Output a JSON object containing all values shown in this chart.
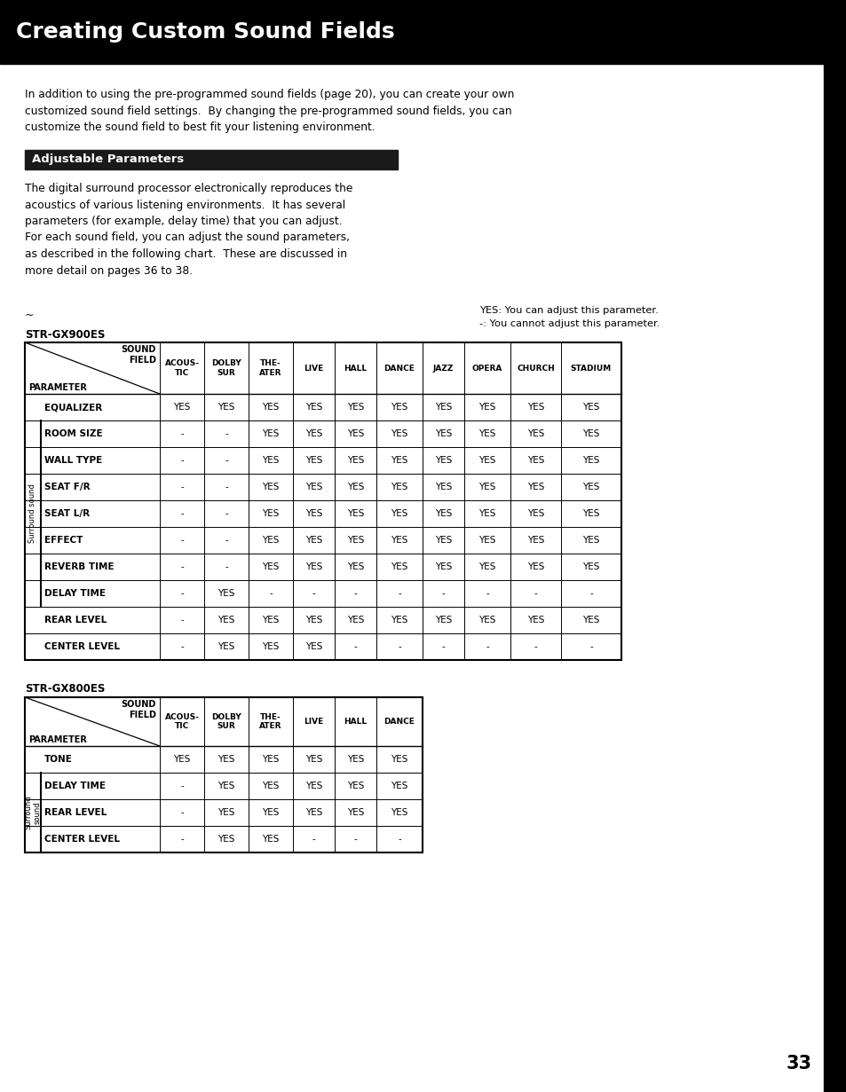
{
  "title": "Creating Custom Sound Fields",
  "title_bg": "#000000",
  "title_color": "#ffffff",
  "title_fontsize": 18,
  "section_header": "Adjustable Parameters",
  "section_bg": "#1a1a1a",
  "section_color": "#ffffff",
  "intro_text": "In addition to using the pre-programmed sound fields (page 20), you can create your own\ncustomized sound field settings.  By changing the pre-programmed sound fields, you can\ncustomize the sound field to best fit your listening environment.",
  "body_text": "The digital surround processor electronically reproduces the\nacoustics of various listening environments.  It has several\nparameters (for example, delay time) that you can adjust.\nFor each sound field, you can adjust the sound parameters,\nas described in the following chart.  These are discussed in\nmore detail on pages 36 to 38.",
  "arrow_text": "→",
  "note_text1": "YES: You can adjust this parameter.",
  "note_text2": "-: You cannot adjust this parameter.",
  "table1_label": "STR-GX900ES",
  "table2_label": "STR-GX800ES",
  "table1_col_headers": [
    "ACOUS-\nTIC",
    "DOLBY\nSUR",
    "THE-\nATER",
    "LIVE",
    "HALL",
    "DANCE",
    "JAZZ",
    "OPERA",
    "CHURCH",
    "STADIUM"
  ],
  "table1_rows": [
    [
      "EQUALIZER",
      "YES",
      "YES",
      "YES",
      "YES",
      "YES",
      "YES",
      "YES",
      "YES",
      "YES",
      "YES"
    ],
    [
      "ROOM SIZE",
      "-",
      "-",
      "YES",
      "YES",
      "YES",
      "YES",
      "YES",
      "YES",
      "YES",
      "YES"
    ],
    [
      "WALL TYPE",
      "-",
      "-",
      "YES",
      "YES",
      "YES",
      "YES",
      "YES",
      "YES",
      "YES",
      "YES"
    ],
    [
      "SEAT F/R",
      "-",
      "-",
      "YES",
      "YES",
      "YES",
      "YES",
      "YES",
      "YES",
      "YES",
      "YES"
    ],
    [
      "SEAT L/R",
      "-",
      "-",
      "YES",
      "YES",
      "YES",
      "YES",
      "YES",
      "YES",
      "YES",
      "YES"
    ],
    [
      "EFFECT",
      "-",
      "-",
      "YES",
      "YES",
      "YES",
      "YES",
      "YES",
      "YES",
      "YES",
      "YES"
    ],
    [
      "REVERB TIME",
      "-",
      "-",
      "YES",
      "YES",
      "YES",
      "YES",
      "YES",
      "YES",
      "YES",
      "YES"
    ],
    [
      "DELAY TIME",
      "-",
      "YES",
      "-",
      "-",
      "-",
      "-",
      "-",
      "-",
      "-",
      "-"
    ],
    [
      "REAR LEVEL",
      "-",
      "YES",
      "YES",
      "YES",
      "YES",
      "YES",
      "YES",
      "YES",
      "YES",
      "YES"
    ],
    [
      "CENTER LEVEL",
      "-",
      "YES",
      "YES",
      "YES",
      "-",
      "-",
      "-",
      "-",
      "-",
      "-"
    ]
  ],
  "table1_surround": [
    "ROOM SIZE",
    "WALL TYPE",
    "SEAT F/R",
    "SEAT L/R",
    "EFFECT",
    "REVERB TIME",
    "DELAY TIME"
  ],
  "table2_col_headers": [
    "ACOUS-\nTIC",
    "DOLBY\nSUR",
    "THE-\nATER",
    "LIVE",
    "HALL",
    "DANCE"
  ],
  "table2_rows": [
    [
      "TONE",
      "YES",
      "YES",
      "YES",
      "YES",
      "YES",
      "YES"
    ],
    [
      "DELAY TIME",
      "-",
      "YES",
      "YES",
      "YES",
      "YES",
      "YES"
    ],
    [
      "REAR LEVEL",
      "-",
      "YES",
      "YES",
      "YES",
      "YES",
      "YES"
    ],
    [
      "CENTER LEVEL",
      "-",
      "YES",
      "YES",
      "-",
      "-",
      "-"
    ]
  ],
  "table2_surround": [
    "DELAY TIME",
    "REAR LEVEL",
    "CENTER LEVEL"
  ],
  "page_number": "33",
  "bg_color": "#ffffff",
  "right_bar_color": "#000000"
}
